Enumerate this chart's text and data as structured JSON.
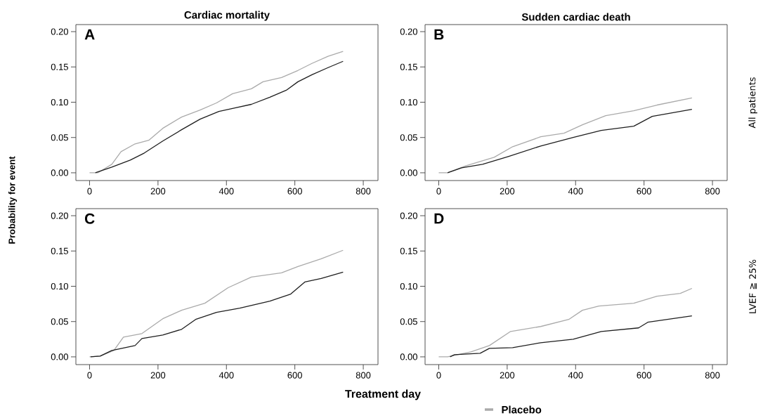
{
  "chart_data": [
    {
      "type": "line",
      "title": "Cardiac mortality",
      "ylabel": "Probability for event",
      "annotations": [
        "A"
      ],
      "xlim": [
        -40,
        843
      ],
      "ylim": [
        -0.011,
        0.21
      ],
      "xticks": [
        0,
        200,
        400,
        600,
        800
      ],
      "yticks": [
        {
          "value": 0,
          "label": "0.00"
        },
        {
          "value": 0.05,
          "label": "0.05"
        },
        {
          "value": 0.1,
          "label": "0.10"
        },
        {
          "value": 0.15,
          "label": "0.15"
        },
        {
          "value": 0.2,
          "label": "0.20"
        }
      ],
      "series": [
        {
          "color": "#aaaaaa",
          "x": [
            0,
            24,
            65,
            92,
            133,
            173,
            214,
            269,
            323,
            371,
            418,
            473,
            507,
            561,
            609,
            650,
            697,
            741
          ],
          "values": [
            0,
            0,
            0.012,
            0.03,
            0.041,
            0.046,
            0.063,
            0.079,
            0.089,
            0.099,
            0.112,
            0.119,
            0.129,
            0.135,
            0.145,
            0.155,
            0.165,
            0.172
          ]
        },
        {
          "color": "#1e1e1e",
          "x": [
            17,
            65,
            119,
            160,
            214,
            269,
            323,
            378,
            425,
            473,
            527,
            575,
            609,
            650,
            697,
            741
          ],
          "values": [
            0,
            0.008,
            0.018,
            0.028,
            0.045,
            0.061,
            0.076,
            0.087,
            0.092,
            0.097,
            0.107,
            0.117,
            0.129,
            0.139,
            0.149,
            0.158
          ]
        }
      ]
    },
    {
      "type": "line",
      "title": "Sudden cardiac death",
      "y2label": "All patients",
      "annotations": [
        "B"
      ],
      "xlim": [
        -40,
        843
      ],
      "ylim": [
        -0.011,
        0.21
      ],
      "xticks": [
        0,
        200,
        400,
        600,
        800
      ],
      "yticks": [
        {
          "value": 0,
          "label": "0.00"
        },
        {
          "value": 0.05,
          "label": "0.05"
        },
        {
          "value": 0.1,
          "label": "0.10"
        },
        {
          "value": 0.15,
          "label": "0.15"
        },
        {
          "value": 0.2,
          "label": "0.20"
        }
      ],
      "series": [
        {
          "color": "#aaaaaa",
          "x": [
            0,
            26,
            80,
            162,
            216,
            298,
            366,
            420,
            488,
            570,
            638,
            740
          ],
          "values": [
            0,
            0,
            0.01,
            0.022,
            0.037,
            0.051,
            0.056,
            0.068,
            0.081,
            0.088,
            0.096,
            0.106
          ]
        },
        {
          "color": "#1e1e1e",
          "x": [
            26,
            67,
            128,
            203,
            298,
            393,
            475,
            570,
            624,
            740
          ],
          "values": [
            0,
            0.007,
            0.012,
            0.023,
            0.038,
            0.05,
            0.06,
            0.066,
            0.08,
            0.09
          ]
        }
      ]
    },
    {
      "type": "line",
      "xlabel": "Treatment day",
      "legend": "bottom",
      "annotations": [
        "C"
      ],
      "xlim": [
        -40,
        843
      ],
      "ylim": [
        -0.011,
        0.21
      ],
      "xticks": [
        0,
        200,
        400,
        600,
        800
      ],
      "yticks": [
        {
          "value": 0,
          "label": "0.00"
        },
        {
          "value": 0.05,
          "label": "0.05"
        },
        {
          "value": 0.1,
          "label": "0.10"
        },
        {
          "value": 0.15,
          "label": "0.15"
        },
        {
          "value": 0.2,
          "label": "0.20"
        }
      ],
      "series": [
        {
          "name": "Placebo",
          "color": "#aaaaaa",
          "x": [
            0,
            31,
            71,
            99,
            153,
            214,
            269,
            337,
            405,
            473,
            561,
            609,
            677,
            741
          ],
          "values": [
            0,
            0.001,
            0.009,
            0.028,
            0.033,
            0.054,
            0.066,
            0.076,
            0.098,
            0.113,
            0.119,
            0.128,
            0.139,
            0.151
          ]
        },
        {
          "color": "#1e1e1e",
          "x": [
            3,
            31,
            65,
            133,
            153,
            214,
            269,
            310,
            371,
            439,
            527,
            588,
            629,
            677,
            741
          ],
          "values": [
            0,
            0.001,
            0.009,
            0.016,
            0.026,
            0.031,
            0.039,
            0.053,
            0.063,
            0.069,
            0.079,
            0.089,
            0.106,
            0.111,
            0.12
          ]
        }
      ]
    },
    {
      "type": "line",
      "y2label": "LVEF ≧ 25%",
      "annotations": [
        "D"
      ],
      "xlim": [
        -40,
        843
      ],
      "ylim": [
        -0.011,
        0.21
      ],
      "xticks": [
        0,
        200,
        400,
        600,
        800
      ],
      "yticks": [
        {
          "value": 0,
          "label": "0.00"
        },
        {
          "value": 0.05,
          "label": "0.05"
        },
        {
          "value": 0.1,
          "label": "0.10"
        },
        {
          "value": 0.15,
          "label": "0.15"
        },
        {
          "value": 0.2,
          "label": "0.20"
        }
      ],
      "series": [
        {
          "color": "#aaaaaa",
          "x": [
            0,
            26,
            94,
            148,
            210,
            298,
            380,
            420,
            468,
            570,
            638,
            706,
            740
          ],
          "values": [
            0,
            0,
            0.007,
            0.016,
            0.036,
            0.043,
            0.053,
            0.066,
            0.072,
            0.076,
            0.086,
            0.09,
            0.097
          ]
        },
        {
          "color": "#1e1e1e",
          "x": [
            33,
            46,
            121,
            148,
            216,
            298,
            393,
            475,
            584,
            611,
            740
          ],
          "values": [
            0,
            0.003,
            0.005,
            0.012,
            0.013,
            0.02,
            0.025,
            0.036,
            0.041,
            0.049,
            0.058
          ]
        }
      ]
    }
  ]
}
